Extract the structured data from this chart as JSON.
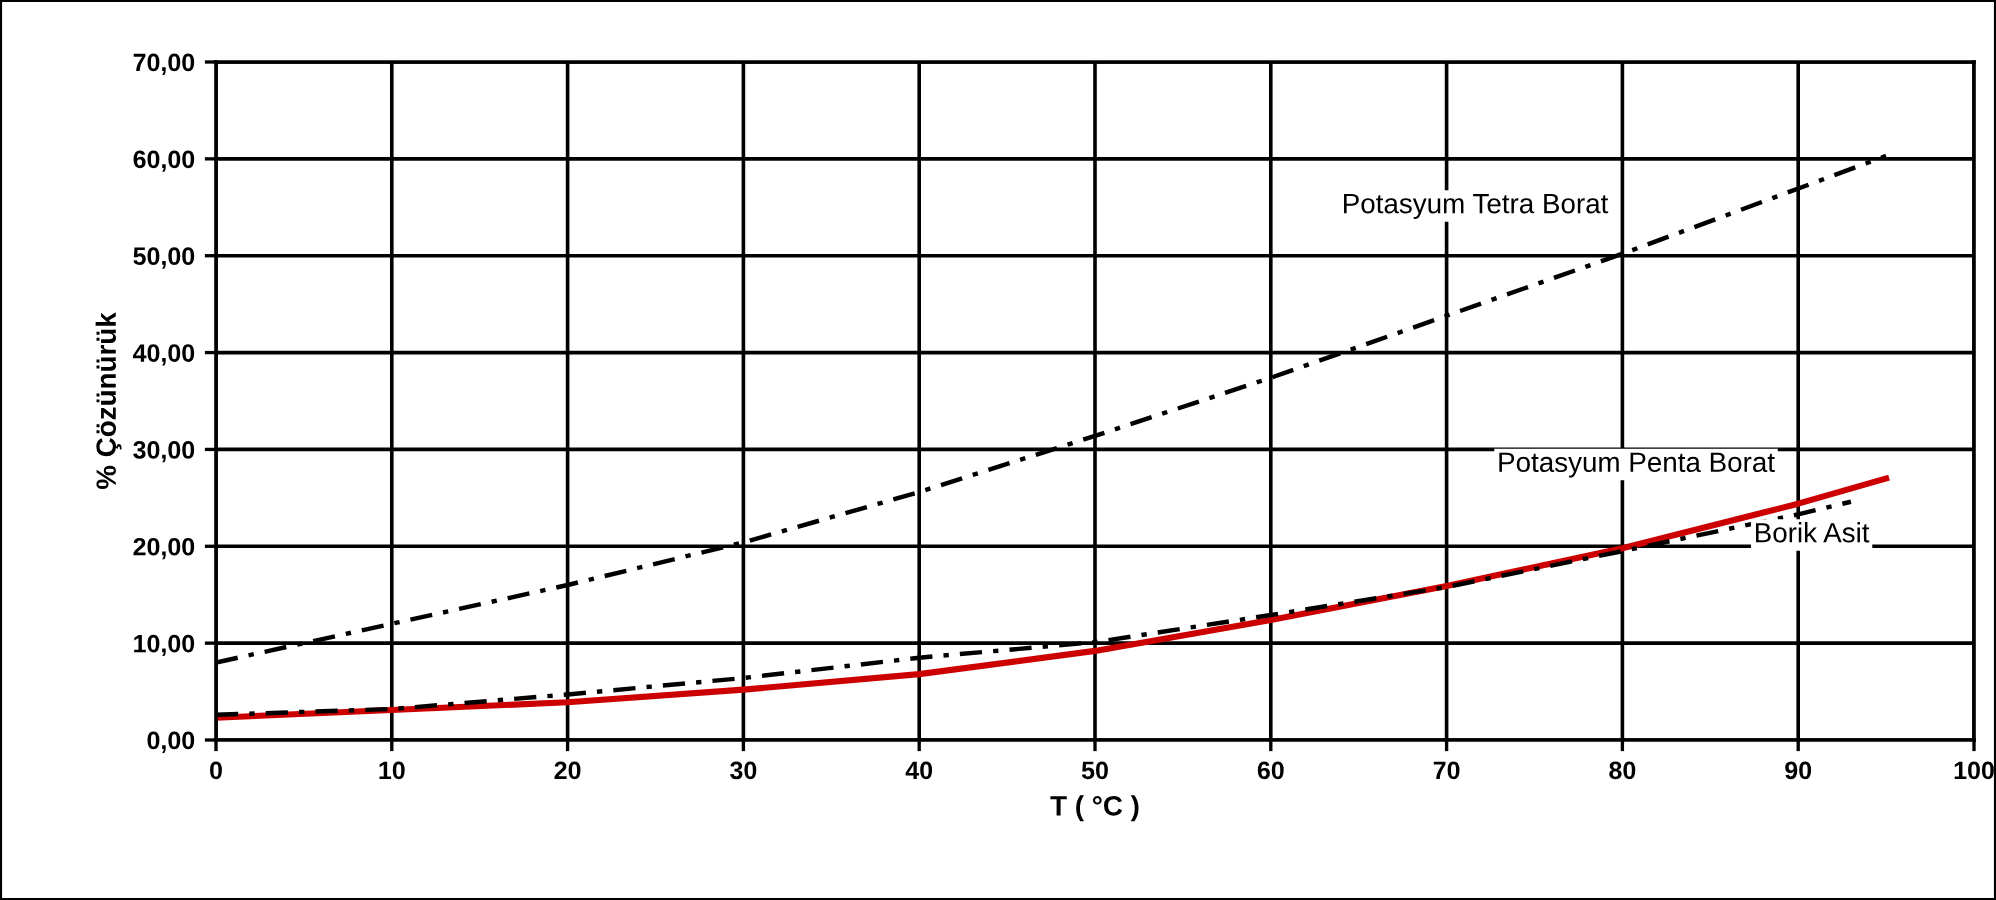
{
  "chart_data": {
    "type": "line",
    "xlabel": "T ( °C )",
    "ylabel": "% Çözünürük",
    "xlim": [
      0,
      100
    ],
    "xticks": [
      0,
      10,
      20,
      30,
      40,
      50,
      60,
      70,
      80,
      90,
      100
    ],
    "ylim": [
      0,
      70
    ],
    "yticks": [
      {
        "value": 0,
        "label": "0,00"
      },
      {
        "value": 10,
        "label": "10,00"
      },
      {
        "value": 20,
        "label": "20,00"
      },
      {
        "value": 30,
        "label": "30,00"
      },
      {
        "value": 40,
        "label": "40,00"
      },
      {
        "value": 50,
        "label": "50,00"
      },
      {
        "value": 60,
        "label": "60,00"
      },
      {
        "value": 70,
        "label": "70,00"
      }
    ],
    "grid": true,
    "legend": false,
    "marker": "none",
    "series": [
      {
        "name": "Potasyum Tetra Borat",
        "color": "#000000",
        "line_style": "dashdot",
        "x": [
          0,
          10,
          20,
          30,
          40,
          50,
          60,
          70,
          80,
          95
        ],
        "values": [
          8.0,
          12.0,
          16.0,
          20.4,
          25.6,
          31.4,
          37.4,
          43.8,
          50.2,
          60.3
        ]
      },
      {
        "name": "Potasyum Penta Borat",
        "color": "#cc0000",
        "line_style": "solid",
        "x": [
          0,
          10,
          20,
          30,
          40,
          50,
          60,
          70,
          80,
          90,
          95
        ],
        "values": [
          2.3,
          3.1,
          3.9,
          5.2,
          6.8,
          9.2,
          12.4,
          15.9,
          19.8,
          24.4,
          27.0
        ]
      },
      {
        "name": "Borik Asit",
        "color": "#000000",
        "line_style": "dashdot",
        "x": [
          0,
          10,
          20,
          30,
          40,
          50,
          60,
          70,
          80,
          90,
          93
        ],
        "values": [
          2.6,
          3.2,
          4.7,
          6.4,
          8.5,
          10.1,
          12.9,
          15.8,
          19.5,
          23.3,
          24.6
        ]
      }
    ]
  }
}
